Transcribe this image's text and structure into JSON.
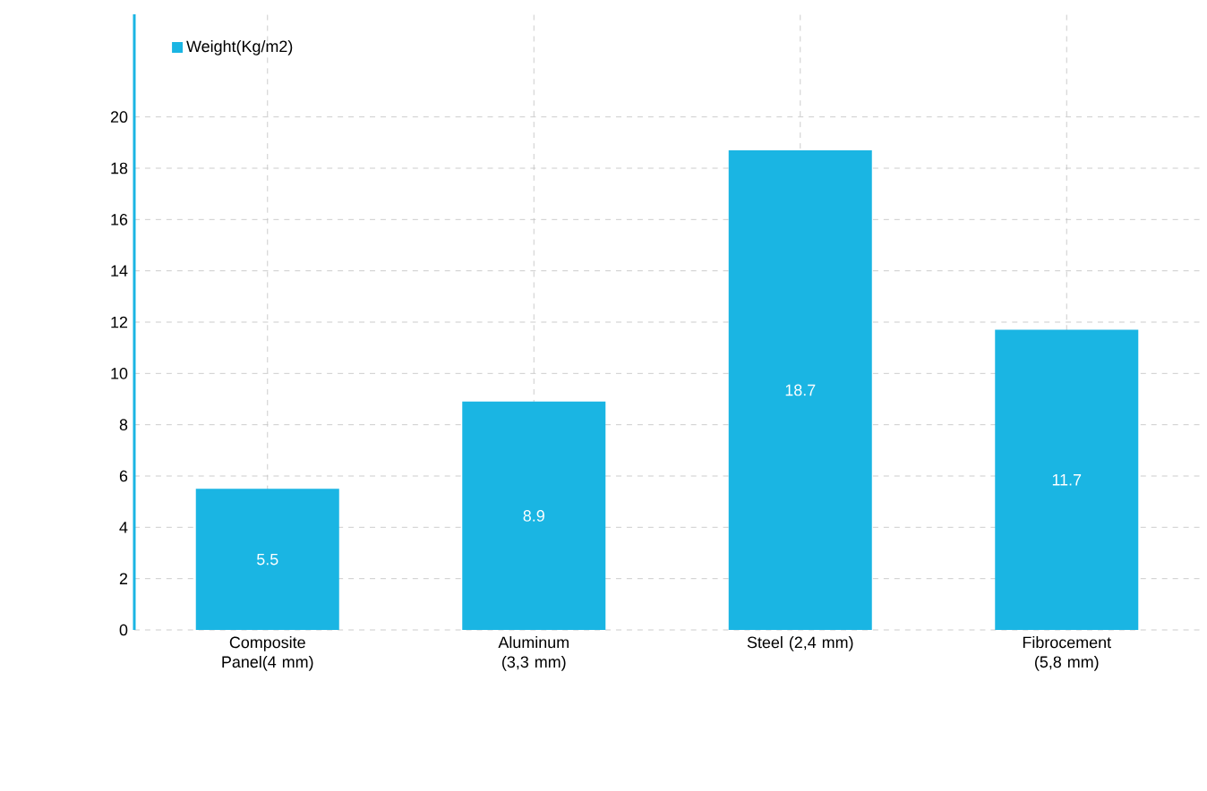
{
  "chart_data": {
    "type": "bar",
    "categories": [
      "Composite Panel(4 mm)",
      "Aluminum (3,3 mm)",
      "Steel (2,4 mm)",
      "Fibrocement (5,8 mm)"
    ],
    "series": [
      {
        "name": "Weight(Kg/m2)",
        "color": "#1ab5e3",
        "values": [
          5.5,
          8.9,
          18.7,
          11.7
        ]
      }
    ],
    "value_labels": [
      "5.5",
      "8.9",
      "18.7",
      "11.7"
    ],
    "ylim": [
      0,
      24
    ],
    "yticks": [
      0,
      2,
      4,
      6,
      8,
      10,
      12,
      14,
      16,
      18,
      20
    ],
    "grid": true,
    "legend": "top left"
  }
}
